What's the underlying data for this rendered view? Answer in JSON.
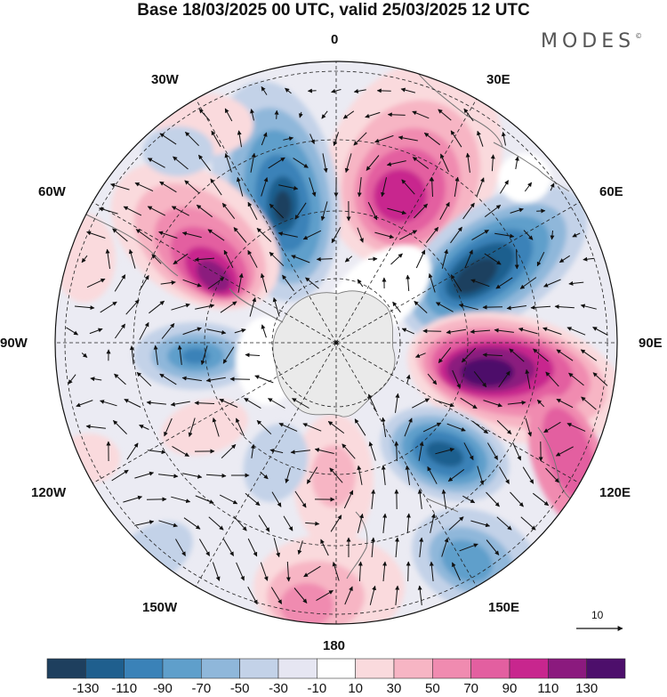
{
  "title": "Base 18/03/2025 00 UTC, valid 25/03/2025 12 UTC",
  "brand": {
    "name": "MODES",
    "mark": "©"
  },
  "longitude_labels": {
    "n0": "0",
    "e30": "30E",
    "e60": "60E",
    "e90": "90E",
    "e120": "120E",
    "e150": "150E",
    "s180": "180",
    "w150": "150W",
    "w120": "120W",
    "w90": "90W",
    "w60": "60W",
    "w30": "30W"
  },
  "reference_vector": "10",
  "colorbar": {
    "ticks": [
      "-130",
      "-110",
      "-90",
      "-70",
      "-50",
      "-30",
      "-10",
      "10",
      "30",
      "50",
      "70",
      "90",
      "110",
      "130"
    ],
    "colors": [
      "#1e3f5e",
      "#1f5f8e",
      "#3a82b8",
      "#5f9fcb",
      "#8fb7da",
      "#c3d2e8",
      "#e6e6f2",
      "#ffffff",
      "#fadadd",
      "#f7b5c4",
      "#f08bb0",
      "#e35fa0",
      "#c8268e",
      "#8b1a7e",
      "#4d0f6b"
    ]
  }
}
